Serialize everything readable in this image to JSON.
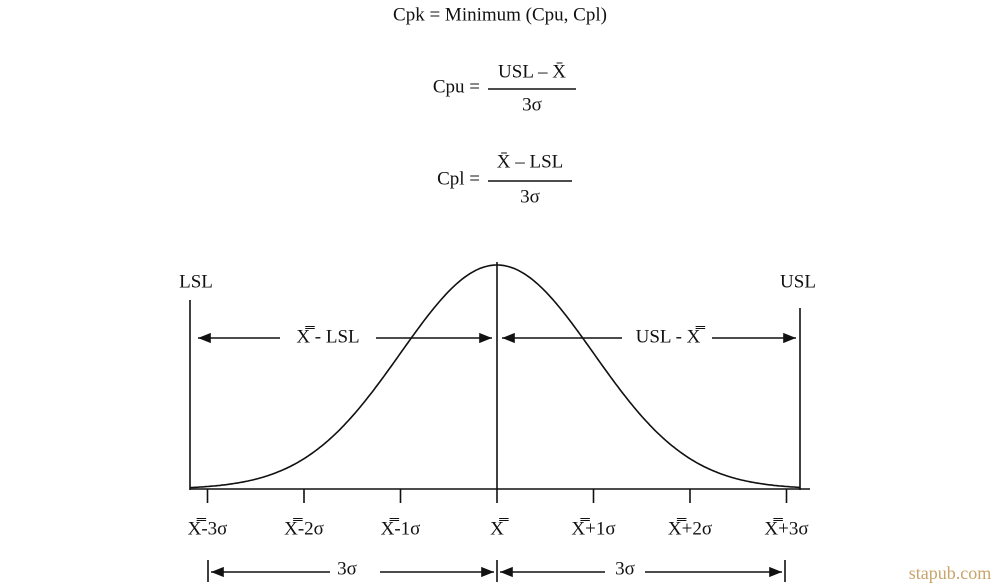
{
  "formulas": {
    "cpk": "Cpk = Minimum (Cpu, Cpl)",
    "cpu": {
      "lhs": "Cpu =",
      "numerator": "USL – X̄",
      "denominator": "3σ"
    },
    "cpl": {
      "lhs": "Cpl =",
      "numerator": "X̄ – LSL",
      "denominator": "3σ"
    }
  },
  "diagram": {
    "lsl": "LSL",
    "usl": "USL",
    "left_span": "X̿ - LSL",
    "right_span": "USL - X̿",
    "ticks": [
      "X̿-3σ",
      "X̿-2σ",
      "X̿-1σ",
      "X̿",
      "X̿+1σ",
      "X̿+2σ",
      "X̿+3σ"
    ],
    "bottom_left": "3σ",
    "bottom_right": "3σ"
  },
  "watermark": "stapub.com"
}
